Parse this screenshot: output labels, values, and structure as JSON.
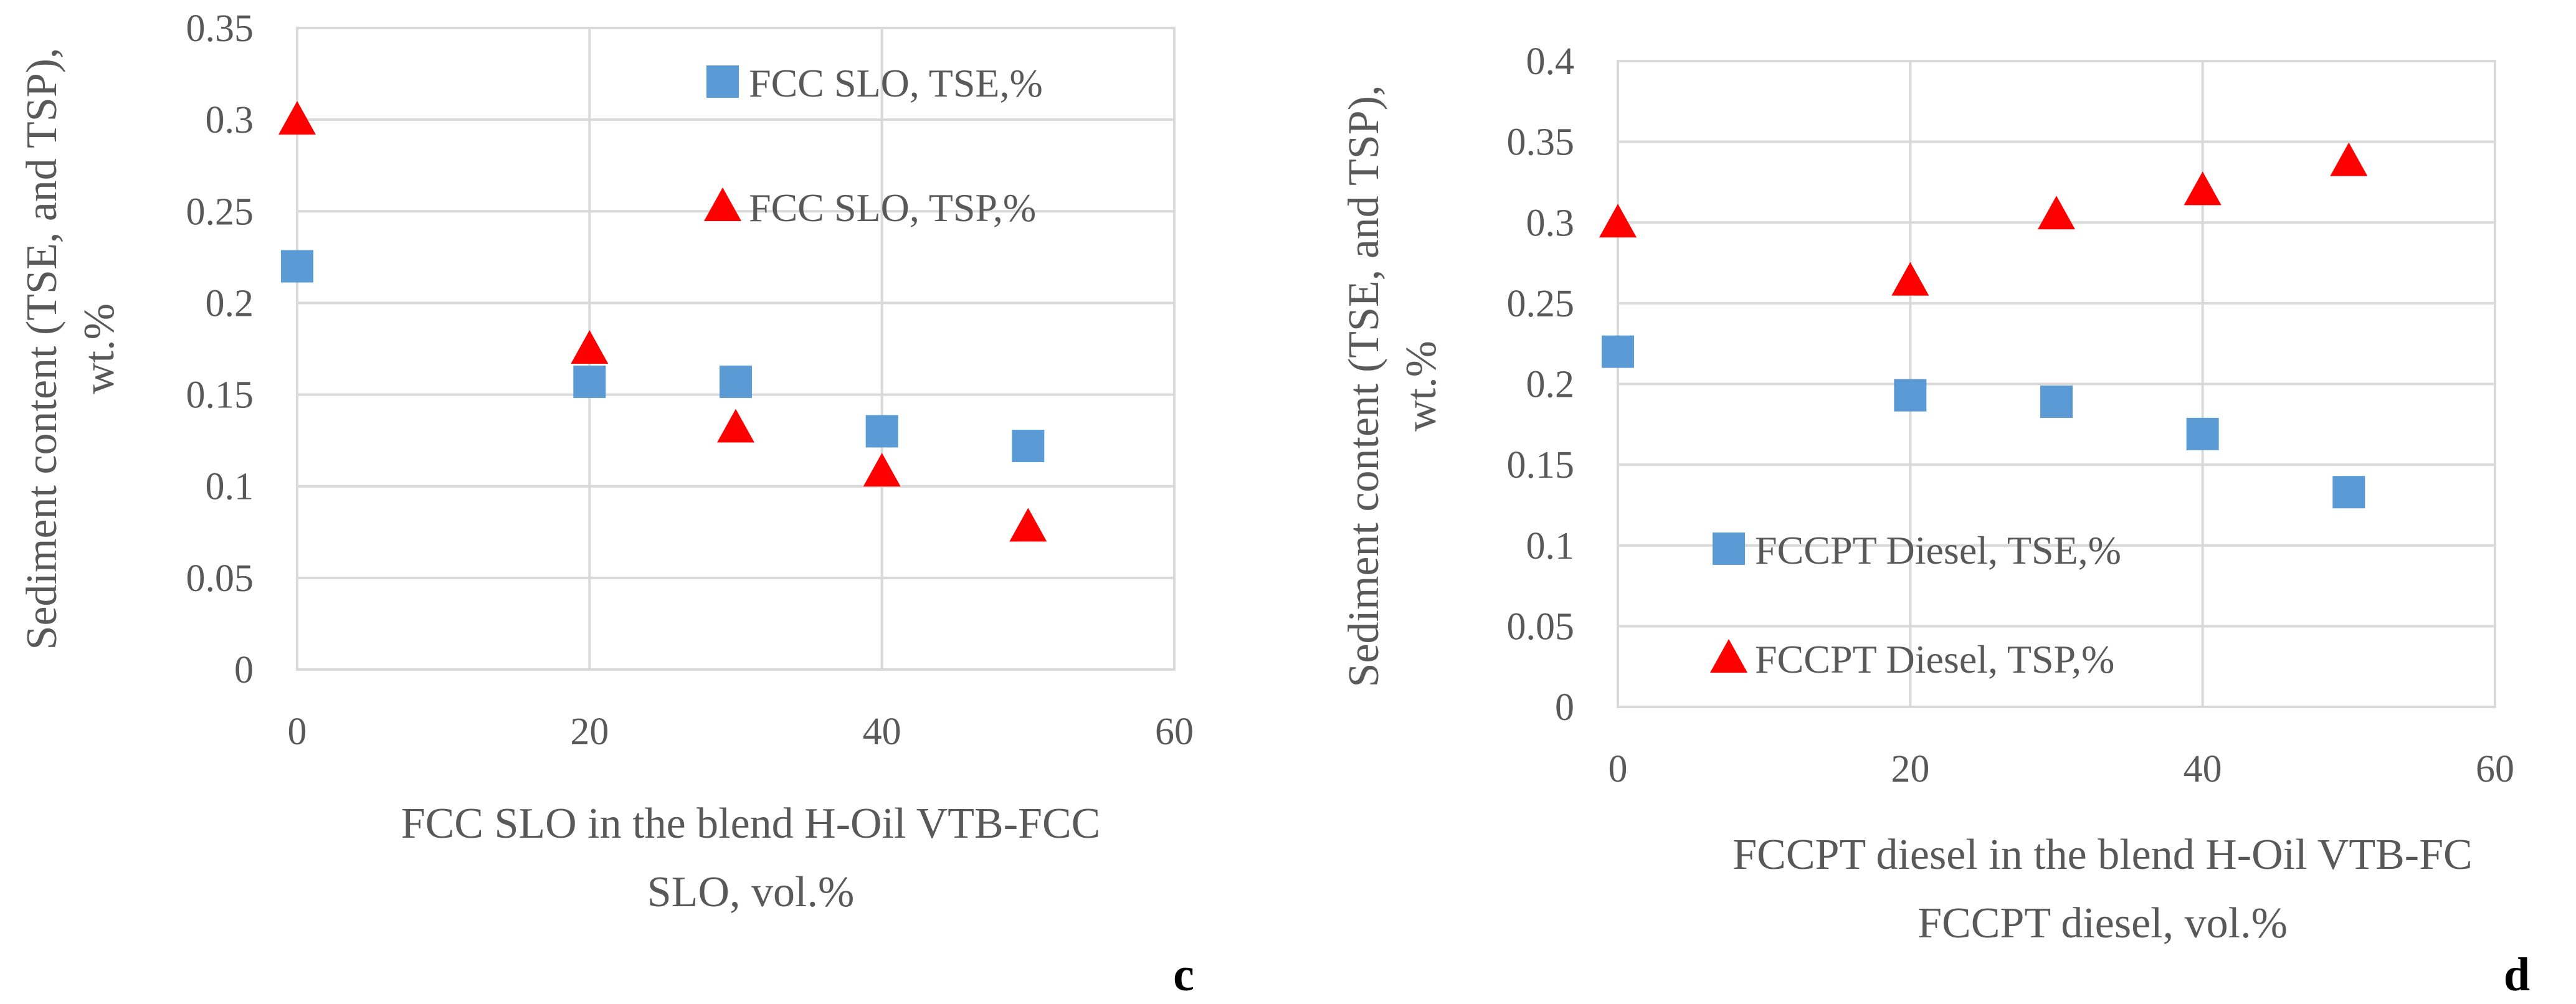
{
  "chart_data": [
    {
      "type": "scatter",
      "panel": "c",
      "xlabel": [
        "FCC SLO in the blend H-Oil VTB-FCC",
        "SLO, vol.%"
      ],
      "ylabel": [
        "Sediment content (TSE, and TSP),",
        "wt.%"
      ],
      "xlim": [
        0,
        60
      ],
      "ylim": [
        0,
        0.35
      ],
      "xticks": [
        "0",
        "20",
        "40",
        "60"
      ],
      "yticks": [
        "0",
        "0.05",
        "0.1",
        "0.15",
        "0.2",
        "0.25",
        "0.3",
        "0.35"
      ],
      "grid": true,
      "legend_position": "top-right",
      "series": [
        {
          "name": "FCC SLO, TSE,%",
          "marker": "square",
          "color": "#5b9bd5",
          "x": [
            0,
            20,
            30,
            40,
            50
          ],
          "y": [
            0.22,
            0.157,
            0.157,
            0.13,
            0.122
          ]
        },
        {
          "name": "FCC SLO, TSP,%",
          "marker": "triangle",
          "color": "#ff0000",
          "x": [
            0,
            20,
            30,
            40,
            50
          ],
          "y": [
            0.3,
            0.175,
            0.132,
            0.108,
            0.078
          ]
        }
      ]
    },
    {
      "type": "scatter",
      "panel": "d",
      "xlabel": [
        "FCCPT diesel in the blend H-Oil VTB-FC",
        "FCCPT diesel, vol.%"
      ],
      "ylabel": [
        "Sediment content (TSE, and TSP),",
        "wt.%"
      ],
      "xlim": [
        0,
        60
      ],
      "ylim": [
        0,
        0.4
      ],
      "xticks": [
        "0",
        "20",
        "40",
        "60"
      ],
      "yticks": [
        "0",
        "0.05",
        "0.1",
        "0.15",
        "0.2",
        "0.25",
        "0.3",
        "0.35",
        "0.4"
      ],
      "grid": true,
      "legend_position": "bottom-left",
      "series": [
        {
          "name": "FCCPT Diesel, TSE,%",
          "marker": "square",
          "color": "#5b9bd5",
          "x": [
            0,
            20,
            30,
            40,
            50
          ],
          "y": [
            0.22,
            0.193,
            0.189,
            0.169,
            0.133
          ]
        },
        {
          "name": "FCCPT Diesel, TSP,%",
          "marker": "triangle",
          "color": "#ff0000",
          "x": [
            0,
            20,
            30,
            40,
            50
          ],
          "y": [
            0.3,
            0.264,
            0.305,
            0.32,
            0.338
          ]
        }
      ]
    }
  ],
  "panel_labels": [
    "c",
    "d"
  ]
}
